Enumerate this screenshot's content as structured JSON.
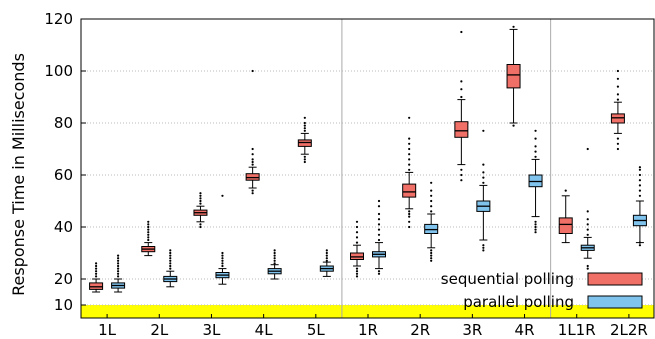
{
  "chart_data": {
    "type": "box",
    "title": "",
    "xlabel": "",
    "ylabel": "Response Time in Milliseconds",
    "ylim": [
      5,
      120
    ],
    "yticks": [
      10,
      20,
      40,
      60,
      80,
      100,
      120
    ],
    "grid": "horizontal dotted",
    "categories": [
      "1L",
      "2L",
      "3L",
      "4L",
      "5L",
      "1R",
      "2R",
      "3R",
      "4R",
      "1L1R",
      "2L2R"
    ],
    "group_separators_after": [
      "5L",
      "4R"
    ],
    "highlight_band": {
      "from": 5,
      "to": 10,
      "color": "#ffff00"
    },
    "legend": {
      "position": "bottom-right"
    },
    "series": [
      {
        "name": "sequential polling",
        "color": "#f07068",
        "boxes": [
          {
            "min": 15,
            "q1": 16,
            "median": 17,
            "q3": 18.5,
            "max": 20,
            "outliers": [
              21,
              22,
              23,
              24,
              25,
              26
            ]
          },
          {
            "min": 29,
            "q1": 30.5,
            "median": 31.5,
            "q3": 32.5,
            "max": 34,
            "outliers": [
              35,
              36,
              37,
              38,
              39,
              40,
              41,
              42
            ]
          },
          {
            "min": 42,
            "q1": 44.5,
            "median": 45.5,
            "q3": 46.5,
            "max": 48,
            "outliers": [
              40,
              41,
              49,
              50,
              51,
              52,
              53
            ]
          },
          {
            "min": 55,
            "q1": 58,
            "median": 59,
            "q3": 60.5,
            "max": 63,
            "outliers": [
              53,
              54,
              64,
              65,
              66,
              68,
              70,
              100
            ]
          },
          {
            "min": 68,
            "q1": 71,
            "median": 72.5,
            "q3": 73.5,
            "max": 76,
            "outliers": [
              65,
              66,
              67,
              77,
              78,
              79,
              80,
              82
            ]
          },
          {
            "min": 25,
            "q1": 27.5,
            "median": 28.5,
            "q3": 30,
            "max": 33,
            "outliers": [
              21,
              22,
              23,
              24,
              34,
              36,
              38,
              40,
              42
            ]
          },
          {
            "min": 47,
            "q1": 51.5,
            "median": 53.5,
            "q3": 56.5,
            "max": 61,
            "outliers": [
              40,
              42,
              44,
              45,
              46,
              62,
              64,
              66,
              68,
              70,
              72,
              74,
              82
            ]
          },
          {
            "min": 64,
            "q1": 74.5,
            "median": 77,
            "q3": 80.5,
            "max": 89,
            "outliers": [
              58,
              60,
              62,
              90,
              93,
              96,
              115
            ]
          },
          {
            "min": 80,
            "q1": 93.5,
            "median": 98.5,
            "q3": 102.5,
            "max": 116,
            "outliers": [
              79,
              117
            ]
          },
          {
            "min": 34,
            "q1": 37.5,
            "median": 41,
            "q3": 43.5,
            "max": 52,
            "outliers": [
              54
            ]
          },
          {
            "min": 76,
            "q1": 80,
            "median": 82,
            "q3": 83.5,
            "max": 88,
            "outliers": [
              70,
              72,
              74,
              89,
              91,
              94,
              97,
              100
            ]
          }
        ]
      },
      {
        "name": "parallel polling",
        "color": "#80c4ee",
        "boxes": [
          {
            "min": 15,
            "q1": 16.5,
            "median": 17.5,
            "q3": 18.5,
            "max": 20,
            "outliers": [
              21,
              22,
              23,
              24,
              25,
              26,
              27,
              28,
              29
            ]
          },
          {
            "min": 17,
            "q1": 19,
            "median": 20,
            "q3": 21,
            "max": 23,
            "outliers": [
              24,
              25,
              26,
              27,
              28,
              29,
              30,
              31
            ]
          },
          {
            "min": 18,
            "q1": 20.5,
            "median": 21.5,
            "q3": 22.5,
            "max": 24,
            "outliers": [
              25,
              26,
              27,
              28,
              29,
              30,
              52
            ]
          },
          {
            "min": 20,
            "q1": 22,
            "median": 23,
            "q3": 24,
            "max": 25.5,
            "outliers": [
              26,
              27,
              28,
              29,
              30,
              31
            ]
          },
          {
            "min": 21,
            "q1": 23,
            "median": 24,
            "q3": 25,
            "max": 26.5,
            "outliers": [
              27,
              28,
              29,
              30,
              31
            ]
          },
          {
            "min": 24,
            "q1": 28.5,
            "median": 29.5,
            "q3": 30.5,
            "max": 34,
            "outliers": [
              22,
              23,
              35,
              37,
              39,
              41,
              43,
              45,
              48,
              50
            ]
          },
          {
            "min": 32,
            "q1": 37.5,
            "median": 39,
            "q3": 41,
            "max": 45,
            "outliers": [
              27,
              28,
              29,
              30,
              31,
              46,
              48,
              50,
              52,
              54,
              57
            ]
          },
          {
            "min": 35,
            "q1": 46,
            "median": 48,
            "q3": 50,
            "max": 56,
            "outliers": [
              31,
              32,
              33,
              57,
              59,
              61,
              64,
              77
            ]
          },
          {
            "min": 44,
            "q1": 55.5,
            "median": 57.5,
            "q3": 60,
            "max": 66,
            "outliers": [
              38,
              39,
              40,
              41,
              42,
              67,
              69,
              71,
              74,
              77
            ]
          },
          {
            "min": 28,
            "q1": 31,
            "median": 32,
            "q3": 33,
            "max": 36,
            "outliers": [
              24,
              25,
              37,
              39,
              41,
              43,
              46,
              70
            ]
          },
          {
            "min": 34,
            "q1": 40.5,
            "median": 42.5,
            "q3": 44.5,
            "max": 50,
            "outliers": [
              33,
              34,
              52,
              54,
              56,
              58,
              60,
              62,
              63
            ]
          }
        ]
      }
    ]
  }
}
